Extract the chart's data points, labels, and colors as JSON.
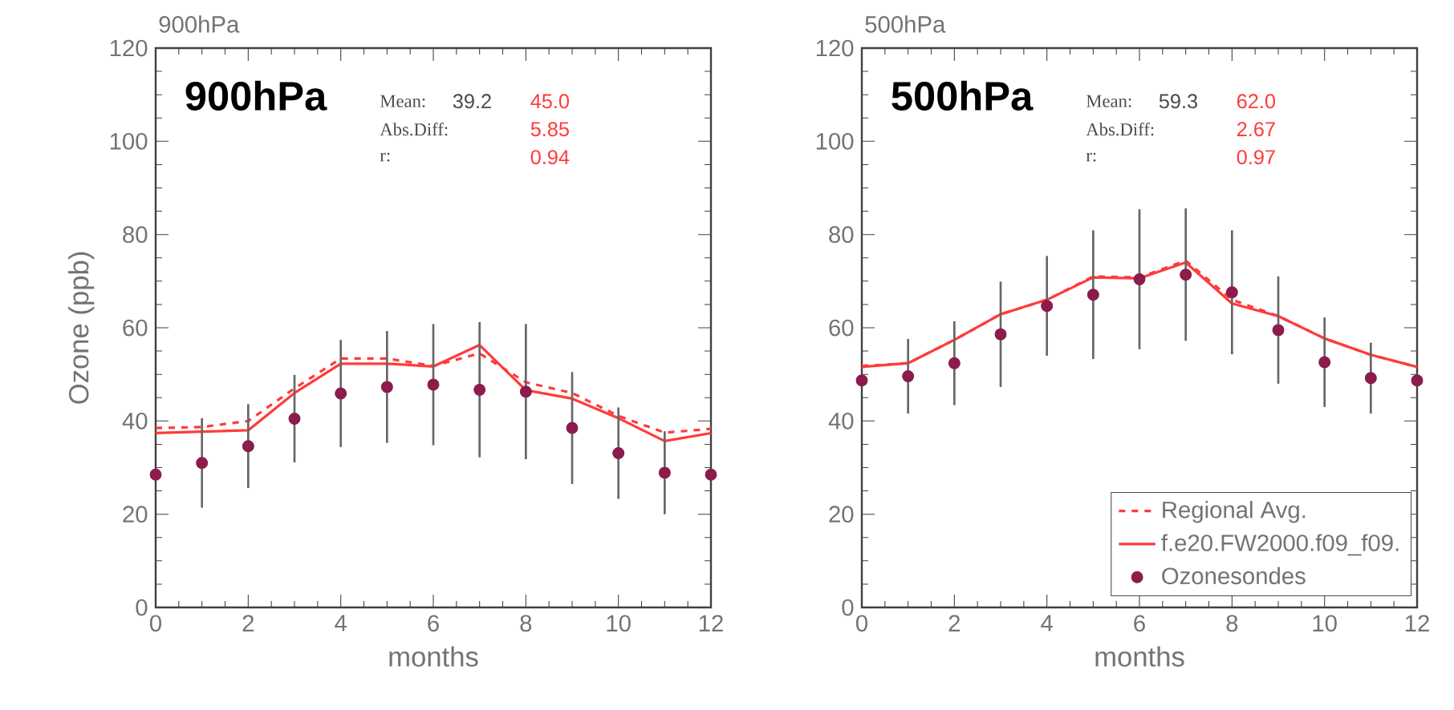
{
  "chart_data": [
    {
      "type": "line",
      "title": "900hPa",
      "xlabel": "months",
      "ylabel": "Ozone (ppb)",
      "x": [
        0,
        1,
        2,
        3,
        4,
        5,
        6,
        7,
        8,
        9,
        10,
        11,
        12
      ],
      "xlim": [
        0,
        12
      ],
      "xticks": [
        0,
        2,
        4,
        6,
        8,
        10,
        12
      ],
      "ylim": [
        0,
        120
      ],
      "yticks": [
        0,
        20,
        40,
        60,
        80,
        100,
        120
      ],
      "legend": false,
      "grid": false,
      "series": [
        {
          "color": "#ff3b3b",
          "line_style": "dashed",
          "marker": "none",
          "values": [
            38.5,
            38.7,
            40,
            47,
            53.4,
            53.4,
            51.8,
            54.5,
            48.3,
            46,
            41.1,
            37.5,
            38.3
          ]
        },
        {
          "color": "#ff3b3b",
          "line_style": "solid",
          "marker": "none",
          "values": [
            37.4,
            37.7,
            38,
            46,
            52.3,
            52.3,
            51.7,
            56.3,
            46.6,
            44.8,
            40.6,
            35.7,
            37.4
          ]
        },
        {
          "type": "scatter",
          "color": "#8b1c4c",
          "marker": "circle",
          "values": [
            28.5,
            31,
            34.6,
            40.5,
            45.9,
            47.3,
            47.8,
            46.7,
            46.3,
            38.5,
            33.1,
            28.9,
            28.5
          ],
          "errors": [
            null,
            9.6,
            9,
            9.4,
            11.5,
            12,
            13,
            14.5,
            14.5,
            12,
            9.8,
            8.9,
            null
          ]
        }
      ],
      "annotations": [
        "900hPa",
        "Mean:",
        "39.2",
        "45.0",
        "Abs.Diff:",
        "5.85",
        "r:",
        "0.94"
      ]
    },
    {
      "type": "line",
      "title": "500hPa",
      "xlabel": "months",
      "x": [
        0,
        1,
        2,
        3,
        4,
        5,
        6,
        7,
        8,
        9,
        10,
        11,
        12
      ],
      "xlim": [
        0,
        12
      ],
      "xticks": [
        0,
        2,
        4,
        6,
        8,
        10,
        12
      ],
      "ylim": [
        0,
        120
      ],
      "yticks": [
        0,
        20,
        40,
        60,
        80,
        100,
        120
      ],
      "legend": "bottom right",
      "grid": false,
      "series": [
        {
          "name": "Regional Avg.",
          "color": "#ff3b3b",
          "line_style": "dashed",
          "marker": "none",
          "values": [
            51.8,
            52.4,
            57.4,
            62.9,
            66,
            71,
            70.8,
            74.4,
            66,
            62.5,
            57.7,
            54.2,
            51.6
          ]
        },
        {
          "name": "f.e20.FW2000.f09_f09.",
          "color": "#ff3b3b",
          "line_style": "solid",
          "marker": "none",
          "values": [
            51.6,
            52.4,
            57.4,
            62.9,
            66,
            70.8,
            70.6,
            74,
            65.2,
            62.5,
            57.7,
            54.2,
            51.6
          ]
        },
        {
          "name": "Ozonesondes",
          "type": "scatter",
          "color": "#8b1c4c",
          "marker": "circle",
          "values": [
            48.7,
            49.6,
            52.4,
            58.6,
            64.7,
            67.1,
            70.4,
            71.4,
            67.6,
            59.5,
            52.6,
            49.2,
            48.7
          ],
          "errors": [
            null,
            8,
            9,
            11.3,
            10.7,
            13.8,
            15,
            14.2,
            13.3,
            11.5,
            9.6,
            7.6,
            null
          ]
        }
      ],
      "annotations": [
        "500hPa",
        "Mean:",
        "59.3",
        "62.0",
        "Abs.Diff:",
        "2.67",
        "r:",
        "0.97"
      ]
    }
  ]
}
